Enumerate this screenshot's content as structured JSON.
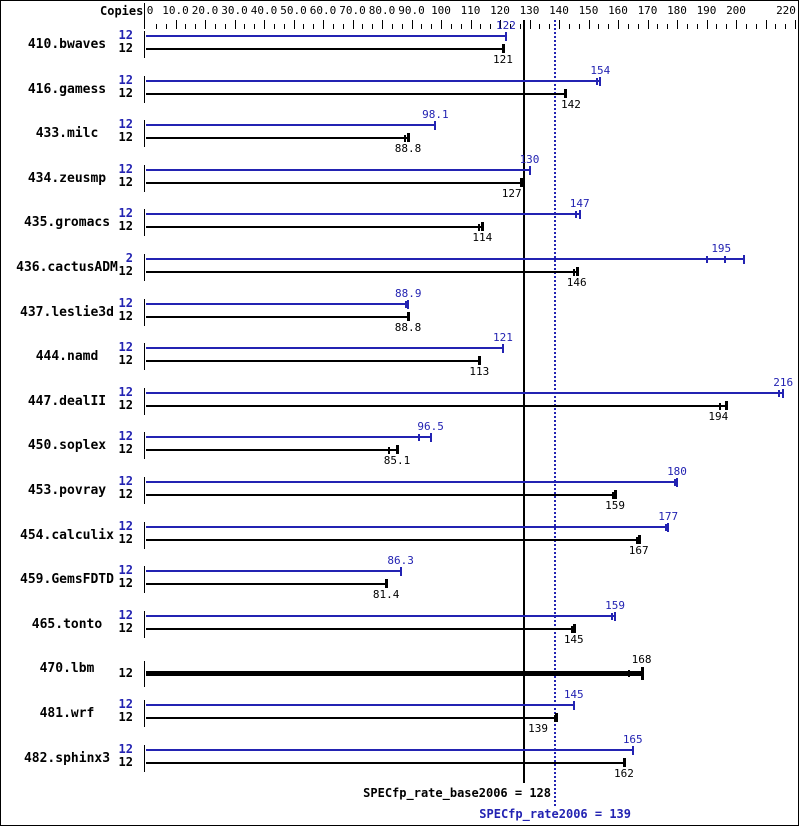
{
  "header": {
    "copies_label": "Copies"
  },
  "colors": {
    "peak_blue": "#2323b2",
    "base_black": "#000000",
    "background": "#ffffff"
  },
  "summary": {
    "base_text": "SPECfp_rate_base2006 = 128",
    "peak_text": "SPECfp_rate2006 = 139"
  },
  "chart_data": {
    "type": "bar",
    "orientation": "horizontal-grouped",
    "title": "",
    "xlabel": "",
    "ylabel": "Copies",
    "xlim": [
      0,
      222
    ],
    "grid": false,
    "legend_position": "bottom-right",
    "axis_tick_labels": [
      {
        "label": "0",
        "value": 0,
        "dx": 4
      },
      {
        "label": "10.0",
        "value": 10
      },
      {
        "label": "20.0",
        "value": 20
      },
      {
        "label": "30.0",
        "value": 30
      },
      {
        "label": "40.0",
        "value": 40
      },
      {
        "label": "50.0",
        "value": 50
      },
      {
        "label": "60.0",
        "value": 60
      },
      {
        "label": "70.0",
        "value": 70
      },
      {
        "label": "80.0",
        "value": 80
      },
      {
        "label": "90.0",
        "value": 90
      },
      {
        "label": "100",
        "value": 100
      },
      {
        "label": "110",
        "value": 110
      },
      {
        "label": "120",
        "value": 120
      },
      {
        "label": "130",
        "value": 130
      },
      {
        "label": "140",
        "value": 140
      },
      {
        "label": "150",
        "value": 150
      },
      {
        "label": "160",
        "value": 160
      },
      {
        "label": "170",
        "value": 170
      },
      {
        "label": "180",
        "value": 180
      },
      {
        "label": "190",
        "value": 190
      },
      {
        "label": "200",
        "value": 200
      },
      {
        "label": "220",
        "value": 220,
        "dx": -9
      }
    ],
    "reference_lines": [
      {
        "name": "SPECfp_rate_base2006",
        "value": 128,
        "style": "solid",
        "color": "#000000"
      },
      {
        "name": "SPECfp_rate2006",
        "value": 139,
        "style": "dotted",
        "color": "#2323b2"
      }
    ],
    "benchmarks": [
      {
        "name": "410.bwaves",
        "peak": {
          "copies": "12",
          "value": 122,
          "label": "122"
        },
        "base": {
          "copies": "12",
          "value": 121,
          "label": "121"
        }
      },
      {
        "name": "416.gamess",
        "peak": {
          "copies": "12",
          "value": 154,
          "label": "154",
          "ticks": [
            -4
          ]
        },
        "base": {
          "copies": "12",
          "value": 142,
          "label": "142",
          "label_dx": 6
        }
      },
      {
        "name": "433.milc",
        "peak": {
          "copies": "12",
          "value": 98.1,
          "label": "98.1"
        },
        "base": {
          "copies": "12",
          "value": 88.8,
          "label": "88.8",
          "ticks": [
            -4
          ]
        }
      },
      {
        "name": "434.zeusmp",
        "peak": {
          "copies": "12",
          "value": 130,
          "label": "130"
        },
        "base": {
          "copies": "12",
          "value": 127,
          "label": "127",
          "label_dx": -9
        }
      },
      {
        "name": "435.gromacs",
        "peak": {
          "copies": "12",
          "value": 147,
          "label": "147",
          "ticks": [
            -5
          ]
        },
        "base": {
          "copies": "12",
          "value": 114,
          "label": "114",
          "ticks": [
            -4
          ]
        }
      },
      {
        "name": "436.cactusADM",
        "peak": {
          "copies": "2",
          "value": 195,
          "label": "195",
          "ticks": [
            -15,
            3
          ],
          "overhang": 23
        },
        "base": {
          "copies": "12",
          "value": 146,
          "label": "146",
          "ticks": [
            -4
          ]
        }
      },
      {
        "name": "437.leslie3d",
        "peak": {
          "copies": "12",
          "value": 88.9,
          "label": "88.9",
          "ticks": [
            -3
          ]
        },
        "base": {
          "copies": "12",
          "value": 88.8,
          "label": "88.8"
        }
      },
      {
        "name": "444.namd",
        "peak": {
          "copies": "12",
          "value": 121,
          "label": "121"
        },
        "base": {
          "copies": "12",
          "value": 113,
          "label": "113"
        }
      },
      {
        "name": "447.dealII",
        "peak": {
          "copies": "12",
          "value": 216,
          "label": "216",
          "ticks": [
            -5
          ]
        },
        "base": {
          "copies": "12",
          "value": 194,
          "label": "194",
          "ticks": [
            1
          ],
          "overhang": 8
        }
      },
      {
        "name": "450.soplex",
        "peak": {
          "copies": "12",
          "value": 96.5,
          "label": "96.5",
          "ticks": [
            -13
          ]
        },
        "base": {
          "copies": "12",
          "value": 85.1,
          "label": "85.1",
          "ticks": [
            -9
          ]
        }
      },
      {
        "name": "453.povray",
        "peak": {
          "copies": "12",
          "value": 180,
          "label": "180",
          "ticks": [
            -3
          ]
        },
        "base": {
          "copies": "12",
          "value": 159,
          "label": "159",
          "ticks": [
            -3
          ]
        }
      },
      {
        "name": "454.calculix",
        "peak": {
          "copies": "12",
          "value": 177,
          "label": "177",
          "ticks": [
            -3
          ]
        },
        "base": {
          "copies": "12",
          "value": 167,
          "label": "167",
          "ticks": [
            -3
          ]
        }
      },
      {
        "name": "459.GemsFDTD",
        "peak": {
          "copies": "12",
          "value": 86.3,
          "label": "86.3"
        },
        "base": {
          "copies": "12",
          "value": 81.4,
          "label": "81.4"
        }
      },
      {
        "name": "465.tonto",
        "peak": {
          "copies": "12",
          "value": 159,
          "label": "159",
          "ticks": [
            -4
          ]
        },
        "base": {
          "copies": "12",
          "value": 145,
          "label": "145",
          "ticks": [
            -3
          ]
        }
      },
      {
        "name": "470.lbm",
        "single": true,
        "base": {
          "copies": "12",
          "value": 168,
          "label": "168",
          "ticks": [
            -14
          ]
        }
      },
      {
        "name": "481.wrf",
        "peak": {
          "copies": "12",
          "value": 145,
          "label": "145"
        },
        "base": {
          "copies": "12",
          "value": 139,
          "label": "139",
          "ticks": [
            -2
          ],
          "label_dx": -18
        }
      },
      {
        "name": "482.sphinx3",
        "peak": {
          "copies": "12",
          "value": 165,
          "label": "165"
        },
        "base": {
          "copies": "12",
          "value": 162,
          "label": "162"
        }
      }
    ]
  }
}
